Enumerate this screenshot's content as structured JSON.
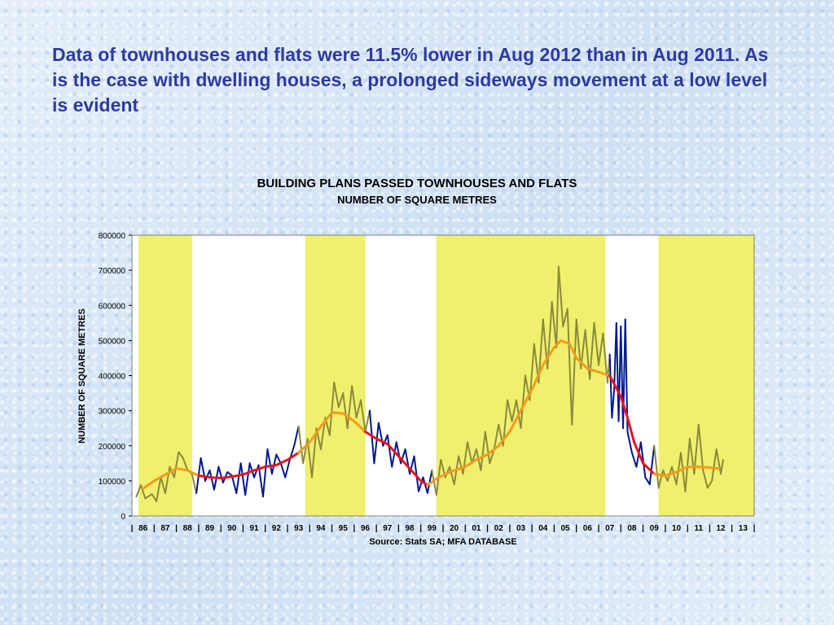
{
  "heading": "Data of townhouses and flats were 11.5% lower in Aug 2012 than in Aug 2011.  As is the case with dwelling houses, a prolonged sideways movement at a low level is evident",
  "chart_data": {
    "type": "line",
    "title": "BUILDING PLANS PASSED  TOWNHOUSES AND FLATS",
    "subtitle": "NUMBER OF SQUARE METRES",
    "ylabel": "NUMBER OF SQUARE METRES",
    "source": "Source: Stats SA; MFA DATABASE",
    "ylim": [
      0,
      800000
    ],
    "xlim": [
      1986,
      2014
    ],
    "y_ticks": [
      0,
      100000,
      200000,
      300000,
      400000,
      500000,
      600000,
      700000,
      800000
    ],
    "y_tick_labels": [
      "0",
      "100000",
      "200000",
      "300000",
      "400000",
      "500000",
      "600000",
      "700000",
      "800000"
    ],
    "x_tick_labels": [
      "86",
      "87",
      "88",
      "89",
      "90",
      "91",
      "92",
      "93",
      "94",
      "95",
      "96",
      "97",
      "98",
      "99",
      "20",
      "01",
      "02",
      "03",
      "04",
      "05",
      "06",
      "07",
      "08",
      "09",
      "10",
      "11",
      "12",
      "13"
    ],
    "shaded_periods": [
      [
        1986,
        1989
      ],
      [
        1993.5,
        1996.8
      ],
      [
        1999.4,
        2007.6
      ],
      [
        2009.4,
        2014
      ]
    ],
    "colors": {
      "shade": "#f0f06e",
      "monthly_in_shade": "#8b8a3c",
      "monthly_in_clear": "#00188f",
      "trend_in_shade": "#f59a1e",
      "trend_in_clear": "#e8141e"
    },
    "series": [
      {
        "points": [
          [
            1986.2,
            55000
          ],
          [
            1986.4,
            88000
          ],
          [
            1986.6,
            50000
          ],
          [
            1986.9,
            62000
          ],
          [
            1987.1,
            42000
          ],
          [
            1987.3,
            110000
          ],
          [
            1987.5,
            65000
          ],
          [
            1987.7,
            140000
          ],
          [
            1987.9,
            110000
          ],
          [
            1988.1,
            182000
          ],
          [
            1988.3,
            165000
          ],
          [
            1988.5,
            130000
          ],
          [
            1988.7,
            120000
          ],
          [
            1988.9,
            65000
          ],
          [
            1989.1,
            165000
          ],
          [
            1989.3,
            100000
          ],
          [
            1989.5,
            130000
          ],
          [
            1989.7,
            75000
          ],
          [
            1989.9,
            140000
          ],
          [
            1990.1,
            95000
          ],
          [
            1990.3,
            125000
          ],
          [
            1990.5,
            115000
          ],
          [
            1990.7,
            65000
          ],
          [
            1990.9,
            150000
          ],
          [
            1991.1,
            60000
          ],
          [
            1991.3,
            150000
          ],
          [
            1991.5,
            110000
          ],
          [
            1991.7,
            145000
          ],
          [
            1991.9,
            55000
          ],
          [
            1992.1,
            190000
          ],
          [
            1992.3,
            120000
          ],
          [
            1992.5,
            175000
          ],
          [
            1992.7,
            150000
          ],
          [
            1992.9,
            110000
          ],
          [
            1993.1,
            160000
          ],
          [
            1993.3,
            200000
          ],
          [
            1993.5,
            255000
          ],
          [
            1993.7,
            150000
          ],
          [
            1993.9,
            220000
          ],
          [
            1994.1,
            110000
          ],
          [
            1994.3,
            250000
          ],
          [
            1994.5,
            190000
          ],
          [
            1994.7,
            280000
          ],
          [
            1994.9,
            230000
          ],
          [
            1995.1,
            380000
          ],
          [
            1995.3,
            310000
          ],
          [
            1995.5,
            350000
          ],
          [
            1995.7,
            250000
          ],
          [
            1995.9,
            370000
          ],
          [
            1996.1,
            280000
          ],
          [
            1996.3,
            330000
          ],
          [
            1996.5,
            240000
          ],
          [
            1996.7,
            300000
          ],
          [
            1996.9,
            150000
          ],
          [
            1997.1,
            265000
          ],
          [
            1997.3,
            200000
          ],
          [
            1997.5,
            230000
          ],
          [
            1997.7,
            140000
          ],
          [
            1997.9,
            210000
          ],
          [
            1998.1,
            150000
          ],
          [
            1998.3,
            190000
          ],
          [
            1998.5,
            120000
          ],
          [
            1998.7,
            170000
          ],
          [
            1998.9,
            70000
          ],
          [
            1999.1,
            110000
          ],
          [
            1999.3,
            65000
          ],
          [
            1999.5,
            130000
          ],
          [
            1999.7,
            60000
          ],
          [
            1999.9,
            160000
          ],
          [
            2000.1,
            110000
          ],
          [
            2000.3,
            140000
          ],
          [
            2000.5,
            90000
          ],
          [
            2000.7,
            170000
          ],
          [
            2000.9,
            120000
          ],
          [
            2001.1,
            210000
          ],
          [
            2001.3,
            150000
          ],
          [
            2001.5,
            190000
          ],
          [
            2001.7,
            130000
          ],
          [
            2001.9,
            240000
          ],
          [
            2002.1,
            150000
          ],
          [
            2002.3,
            190000
          ],
          [
            2002.5,
            260000
          ],
          [
            2002.7,
            200000
          ],
          [
            2002.9,
            330000
          ],
          [
            2003.1,
            270000
          ],
          [
            2003.3,
            330000
          ],
          [
            2003.5,
            250000
          ],
          [
            2003.7,
            400000
          ],
          [
            2003.9,
            330000
          ],
          [
            2004.1,
            490000
          ],
          [
            2004.3,
            380000
          ],
          [
            2004.5,
            560000
          ],
          [
            2004.7,
            420000
          ],
          [
            2004.9,
            610000
          ],
          [
            2005.1,
            480000
          ],
          [
            2005.2,
            710000
          ],
          [
            2005.4,
            540000
          ],
          [
            2005.6,
            590000
          ],
          [
            2005.8,
            260000
          ],
          [
            2006.0,
            560000
          ],
          [
            2006.2,
            420000
          ],
          [
            2006.4,
            530000
          ],
          [
            2006.6,
            390000
          ],
          [
            2006.8,
            550000
          ],
          [
            2007.0,
            430000
          ],
          [
            2007.2,
            520000
          ],
          [
            2007.4,
            380000
          ],
          [
            2007.5,
            460000
          ],
          [
            2007.6,
            280000
          ],
          [
            2007.7,
            360000
          ],
          [
            2007.8,
            550000
          ],
          [
            2007.9,
            270000
          ],
          [
            2008.0,
            540000
          ],
          [
            2008.1,
            250000
          ],
          [
            2008.2,
            560000
          ],
          [
            2008.3,
            240000
          ],
          [
            2008.5,
            180000
          ],
          [
            2008.7,
            140000
          ],
          [
            2008.9,
            210000
          ],
          [
            2009.1,
            110000
          ],
          [
            2009.3,
            90000
          ],
          [
            2009.5,
            200000
          ],
          [
            2009.7,
            80000
          ],
          [
            2009.9,
            130000
          ],
          [
            2010.1,
            100000
          ],
          [
            2010.3,
            140000
          ],
          [
            2010.5,
            90000
          ],
          [
            2010.7,
            180000
          ],
          [
            2010.9,
            70000
          ],
          [
            2011.1,
            220000
          ],
          [
            2011.3,
            120000
          ],
          [
            2011.5,
            260000
          ],
          [
            2011.7,
            130000
          ],
          [
            2011.9,
            80000
          ],
          [
            2012.1,
            100000
          ],
          [
            2012.3,
            190000
          ],
          [
            2012.5,
            120000
          ],
          [
            2012.6,
            160000
          ]
        ]
      },
      {
        "points": [
          [
            1986.5,
            78000
          ],
          [
            1987.0,
            100000
          ],
          [
            1987.5,
            118000
          ],
          [
            1988.0,
            135000
          ],
          [
            1988.5,
            130000
          ],
          [
            1989.0,
            115000
          ],
          [
            1989.5,
            110000
          ],
          [
            1990.0,
            108000
          ],
          [
            1990.5,
            112000
          ],
          [
            1991.0,
            118000
          ],
          [
            1991.5,
            130000
          ],
          [
            1992.0,
            140000
          ],
          [
            1992.5,
            145000
          ],
          [
            1993.0,
            160000
          ],
          [
            1993.5,
            180000
          ],
          [
            1994.0,
            210000
          ],
          [
            1994.5,
            255000
          ],
          [
            1995.0,
            295000
          ],
          [
            1995.5,
            292000
          ],
          [
            1996.0,
            270000
          ],
          [
            1996.5,
            240000
          ],
          [
            1997.0,
            220000
          ],
          [
            1997.5,
            205000
          ],
          [
            1998.0,
            170000
          ],
          [
            1998.5,
            135000
          ],
          [
            1999.0,
            100000
          ],
          [
            1999.3,
            88000
          ],
          [
            1999.8,
            110000
          ],
          [
            2000.5,
            130000
          ],
          [
            2001.0,
            140000
          ],
          [
            2001.5,
            160000
          ],
          [
            2002.0,
            175000
          ],
          [
            2002.5,
            200000
          ],
          [
            2003.0,
            240000
          ],
          [
            2003.5,
            300000
          ],
          [
            2004.0,
            360000
          ],
          [
            2004.5,
            430000
          ],
          [
            2005.0,
            480000
          ],
          [
            2005.3,
            500000
          ],
          [
            2005.7,
            490000
          ],
          [
            2006.0,
            450000
          ],
          [
            2006.5,
            420000
          ],
          [
            2007.0,
            410000
          ],
          [
            2007.5,
            400000
          ],
          [
            2008.0,
            340000
          ],
          [
            2008.3,
            280000
          ],
          [
            2008.6,
            210000
          ],
          [
            2009.0,
            150000
          ],
          [
            2009.5,
            120000
          ],
          [
            2010.0,
            115000
          ],
          [
            2010.5,
            125000
          ],
          [
            2011.0,
            140000
          ],
          [
            2011.5,
            140000
          ],
          [
            2012.0,
            138000
          ],
          [
            2012.4,
            135000
          ]
        ]
      }
    ]
  }
}
